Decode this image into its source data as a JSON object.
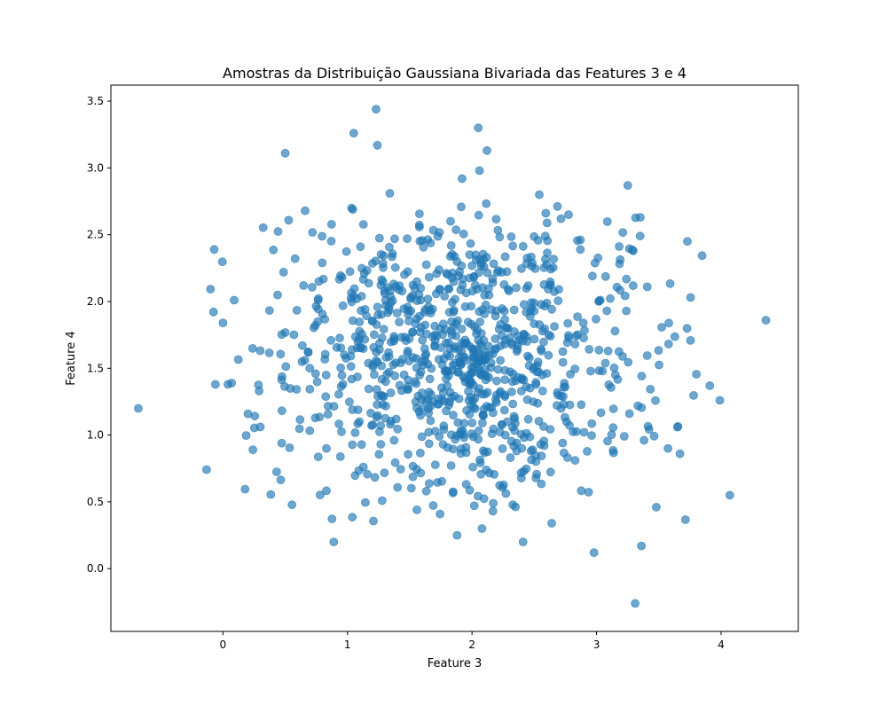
{
  "chart_data": {
    "type": "scatter",
    "title": "Amostras da Distribuição Gaussiana Bivariada das Features 3 e 4",
    "xlabel": "Feature 3",
    "ylabel": "Feature 4",
    "xlim": [
      -0.9,
      4.62
    ],
    "ylim": [
      -0.47,
      3.62
    ],
    "xticks": [
      0,
      1,
      2,
      3,
      4
    ],
    "yticks": [
      0.0,
      0.5,
      1.0,
      1.5,
      2.0,
      2.5,
      3.0,
      3.5
    ],
    "ytick_labels": [
      "0.0",
      "0.5",
      "1.0",
      "1.5",
      "2.0",
      "2.5",
      "3.0",
      "3.5"
    ],
    "grid": false,
    "legend": "none",
    "point_color": "#1f77b4",
    "point_alpha": 0.65,
    "center": [
      1.9,
      1.6
    ],
    "std": [
      0.75,
      0.55
    ],
    "sample_count": 1000,
    "outliers": [
      [
        -0.68,
        1.2
      ],
      [
        4.36,
        1.86
      ],
      [
        3.31,
        -0.26
      ],
      [
        1.23,
        3.44
      ],
      [
        2.05,
        3.3
      ],
      [
        1.05,
        3.26
      ],
      [
        0.5,
        3.11
      ],
      [
        1.24,
        3.17
      ],
      [
        2.12,
        3.13
      ],
      [
        2.98,
        0.12
      ],
      [
        3.36,
        0.17
      ],
      [
        0.89,
        0.2
      ],
      [
        4.07,
        0.55
      ],
      [
        3.73,
        2.45
      ],
      [
        -0.07,
        2.39
      ],
      [
        3.25,
        2.87
      ],
      [
        1.92,
        2.92
      ],
      [
        2.06,
        2.98
      ],
      [
        1.88,
        0.25
      ],
      [
        2.08,
        0.3
      ],
      [
        2.41,
        0.2
      ],
      [
        2.64,
        0.34
      ],
      [
        0.04,
        1.38
      ],
      [
        3.99,
        1.26
      ],
      [
        3.91,
        1.37
      ],
      [
        0.24,
        0.89
      ],
      [
        3.65,
        1.06
      ],
      [
        3.67,
        0.86
      ],
      [
        3.48,
        0.46
      ],
      [
        0.29,
        1.33
      ],
      [
        1.34,
        2.81
      ],
      [
        2.54,
        2.8
      ],
      [
        0.66,
        2.68
      ],
      [
        3.35,
        2.49
      ],
      [
        0.0,
        1.84
      ],
      [
        0.09,
        2.01
      ],
      [
        -0.06,
        1.38
      ],
      [
        0.07,
        1.39
      ]
    ]
  }
}
